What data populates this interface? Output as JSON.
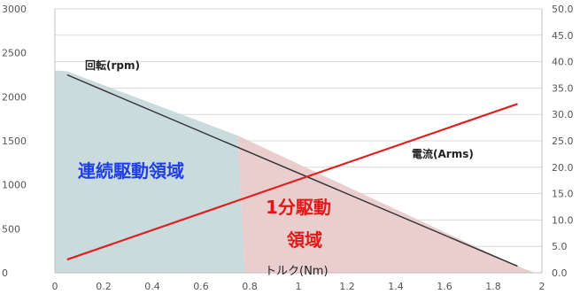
{
  "chart_data": {
    "type": "line",
    "title": "",
    "xlabel": "トルク(Nm)",
    "x_ticks": [
      "0",
      "0.2",
      "0.4",
      "0.6",
      "0.8",
      "1",
      "1.2",
      "1.4",
      "1.6",
      "1.8",
      "2"
    ],
    "xlim": [
      0,
      2
    ],
    "y_left": {
      "ylim": [
        0,
        3000
      ],
      "ticks": [
        "0",
        "500",
        "1000",
        "1500",
        "2000",
        "2500",
        "3000"
      ]
    },
    "y_right": {
      "ylim": [
        0,
        50
      ],
      "ticks": [
        "0.0",
        "5.0",
        "10.0",
        "15.0",
        "20.0",
        "25.0",
        "30.0",
        "35.0",
        "40.0",
        "45.0",
        "50.0"
      ]
    },
    "grid": true,
    "series": [
      {
        "name": "回転(rpm)",
        "axis": "left",
        "color": "#333333",
        "x": [
          0.05,
          1.9
        ],
        "values": [
          2250,
          75
        ]
      },
      {
        "name": "電流(Arms)",
        "axis": "right",
        "color": "#e02020",
        "x": [
          0.05,
          1.9
        ],
        "values": [
          2.5,
          32.0
        ]
      }
    ],
    "regions": [
      {
        "label": "連続駆動領域",
        "color": "#c3d7d9",
        "text_color": "#1f3ee8",
        "x": [
          0.0,
          0.0,
          0.05,
          0.75,
          0.78
        ],
        "values": [
          0,
          2300,
          2290,
          1560,
          0
        ]
      },
      {
        "label_lines": [
          "1分駆動",
          "領域"
        ],
        "color": "#e8c9c9",
        "text_color": "#e01818",
        "x": [
          0.75,
          1.9,
          1.97,
          0.78
        ],
        "values": [
          1560,
          75,
          0,
          0
        ]
      }
    ]
  }
}
